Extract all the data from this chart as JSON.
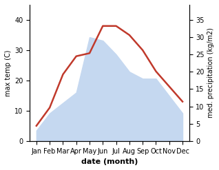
{
  "months": [
    "Jan",
    "Feb",
    "Mar",
    "Apr",
    "May",
    "Jun",
    "Jul",
    "Aug",
    "Sep",
    "Oct",
    "Nov",
    "Dec"
  ],
  "temperature": [
    5,
    11,
    22,
    28,
    29,
    38,
    38,
    35,
    30,
    23,
    18,
    13
  ],
  "precipitation": [
    3,
    8,
    11,
    14,
    30,
    29,
    25,
    20,
    18,
    18,
    13,
    8
  ],
  "temp_color": "#c0392b",
  "precip_color": "#c5d8f0",
  "temp_ylim": [
    0,
    45
  ],
  "precip_ylim": [
    0,
    39.375
  ],
  "temp_yticks": [
    0,
    10,
    20,
    30,
    40
  ],
  "precip_yticks": [
    0,
    5,
    10,
    15,
    20,
    25,
    30,
    35
  ],
  "ylabel_left": "max temp (C)",
  "ylabel_right": "med. precipitation (kg/m2)",
  "xlabel": "date (month)",
  "bg_color": "#ffffff",
  "line_width": 1.8
}
